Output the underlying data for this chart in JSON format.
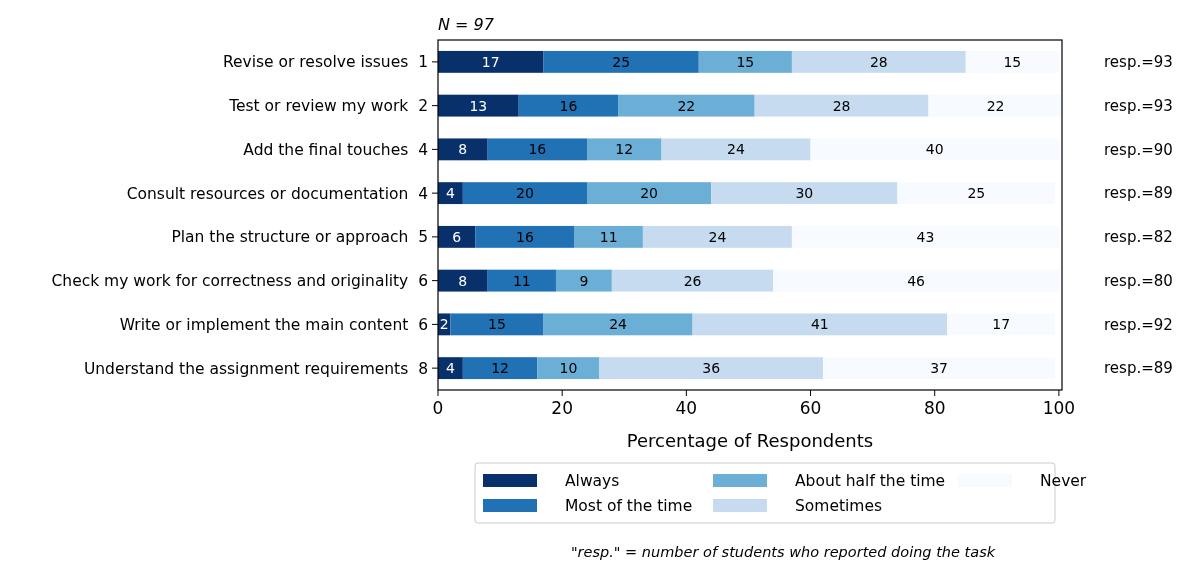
{
  "chart_data": {
    "type": "bar",
    "orientation": "horizontal",
    "stacked": true,
    "title": "N = 97",
    "xlabel": "Percentage of Respondents",
    "categories": [
      "Revise or resolve issues  1",
      "Test or review my work  2",
      "Add the final touches  4",
      "Consult resources or documentation  4",
      "Plan the structure or approach  5",
      "Check my work for correctness and originality  6",
      "Write or implement the main content  6",
      "Understand the assignment requirements  8"
    ],
    "series": [
      {
        "name": "Always",
        "color": "#08306b",
        "values": [
          17,
          13,
          8,
          4,
          6,
          8,
          2,
          4
        ],
        "value_labels": [
          "17",
          "13",
          "8",
          "4",
          "6",
          "8",
          "2",
          "4"
        ]
      },
      {
        "name": "Most of the time",
        "color": "#2171b5",
        "values": [
          25,
          16,
          16,
          20,
          16,
          11,
          15,
          12
        ],
        "value_labels": [
          "25",
          "16",
          "16",
          "20",
          "16",
          "11",
          "15",
          "12"
        ]
      },
      {
        "name": "About half the time",
        "color": "#6baed6",
        "values": [
          15,
          22,
          12,
          20,
          11,
          9,
          24,
          10
        ],
        "value_labels": [
          "15",
          "22",
          "12",
          "20",
          "11",
          "9",
          "24",
          "10"
        ]
      },
      {
        "name": "Sometimes",
        "color": "#c6dbef",
        "values": [
          28,
          28,
          24,
          30,
          24,
          26,
          41,
          36
        ],
        "value_labels": [
          "28",
          "28",
          "24",
          "30",
          "24",
          "26",
          "41",
          "36"
        ]
      },
      {
        "name": "Never",
        "color": "#f7fbff",
        "values": [
          15,
          21.6,
          40,
          25.4,
          43,
          46,
          17.4,
          37.4
        ],
        "value_labels": [
          "15",
          "22",
          "40",
          "25",
          "43",
          "46",
          "17",
          "37"
        ]
      }
    ],
    "xlim": [
      0,
      100.5
    ],
    "xticks": [
      0,
      20,
      40,
      60,
      80,
      100
    ],
    "legend": "bottom",
    "grid": false,
    "annotations": [
      "resp.=93",
      "resp.=93",
      "resp.=90",
      "resp.=89",
      "resp.=82",
      "resp.=80",
      "resp.=92",
      "resp.=89",
      "\"resp.\" = number of students who reported doing the task"
    ]
  }
}
